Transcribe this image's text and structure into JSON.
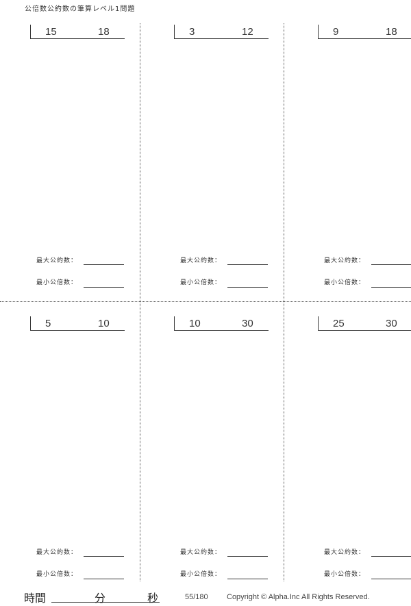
{
  "title": "公倍数公約数の筆算レベル1問題",
  "labels": {
    "gcd": "最大公約数：",
    "lcm": "最小公倍数："
  },
  "problems": [
    {
      "a": "15",
      "b": "18"
    },
    {
      "a": "3",
      "b": "12"
    },
    {
      "a": "9",
      "b": "18"
    },
    {
      "a": "5",
      "b": "10"
    },
    {
      "a": "10",
      "b": "30"
    },
    {
      "a": "25",
      "b": "30"
    }
  ],
  "footer": {
    "time": "時間",
    "minutes": "分",
    "seconds": "秒",
    "page": "55/180",
    "copyright": "Copyright ©  Alpha.Inc All Rights Reserved."
  }
}
